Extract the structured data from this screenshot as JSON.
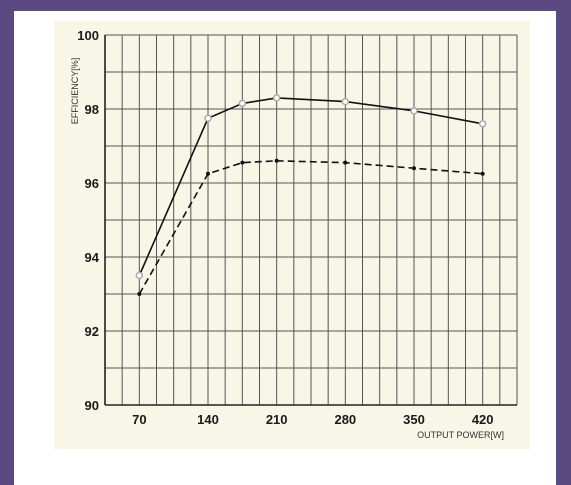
{
  "chart_data": {
    "type": "line",
    "title": "",
    "xlabel": "OUTPUT POWER[W]",
    "ylabel": "EFFICIENCY[%]",
    "xlim": [
      35,
      455
    ],
    "ylim": [
      90,
      100
    ],
    "x_ticks": [
      70,
      140,
      210,
      280,
      350,
      420
    ],
    "y_ticks": [
      90,
      92,
      94,
      96,
      98,
      100
    ],
    "grid": true,
    "colors": {
      "line": "#111111",
      "marker": "#aaaaaa",
      "grid": "#555555",
      "plot_background": "#f7f6e7",
      "page_background": "#5b4a82"
    },
    "series": [
      {
        "style": "solid",
        "marker": "open-circle",
        "x": [
          70,
          140,
          175,
          210,
          280,
          350,
          420
        ],
        "y": [
          93.5,
          97.75,
          98.15,
          98.3,
          98.2,
          97.95,
          97.6
        ]
      },
      {
        "style": "dashed",
        "marker": "dot",
        "x": [
          70,
          140,
          175,
          210,
          280,
          350,
          420
        ],
        "y": [
          93.0,
          96.25,
          96.55,
          96.6,
          96.55,
          96.4,
          96.25
        ]
      }
    ]
  }
}
